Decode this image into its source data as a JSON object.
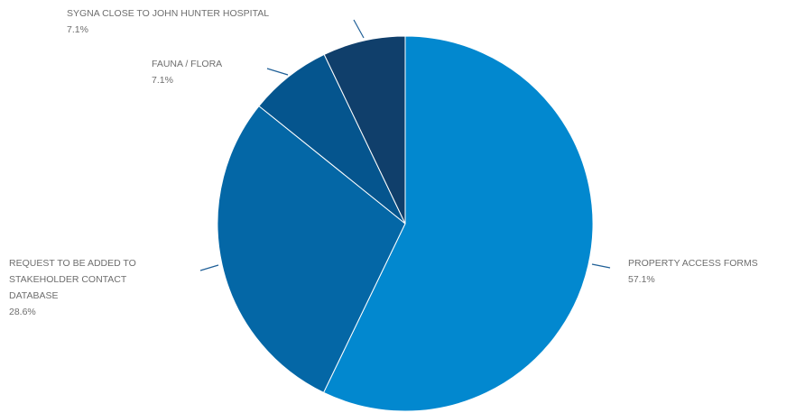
{
  "chart_data": {
    "type": "pie",
    "title": "",
    "slices": [
      {
        "label_lines": [
          "PROPERTY ACCESS FORMS"
        ],
        "value": 57.1,
        "percent_text": "57.1%",
        "color": "#0288cf"
      },
      {
        "label_lines": [
          "REQUEST TO BE ADDED TO",
          "STAKEHOLDER CONTACT",
          "DATABASE"
        ],
        "value": 28.6,
        "percent_text": "28.6%",
        "color": "#0467a6"
      },
      {
        "label_lines": [
          "FAUNA / FLORA"
        ],
        "value": 7.1,
        "percent_text": "7.1%",
        "color": "#05558e"
      },
      {
        "label_lines": [
          "SYGNA CLOSE TO JOHN HUNTER HOSPITAL"
        ],
        "value": 7.1,
        "percent_text": "7.1%",
        "color": "#103f6b"
      }
    ],
    "start": "12 o'clock",
    "direction": "clockwise",
    "label_color": "#6e6e6e",
    "leader_color": "#1f5f97"
  }
}
